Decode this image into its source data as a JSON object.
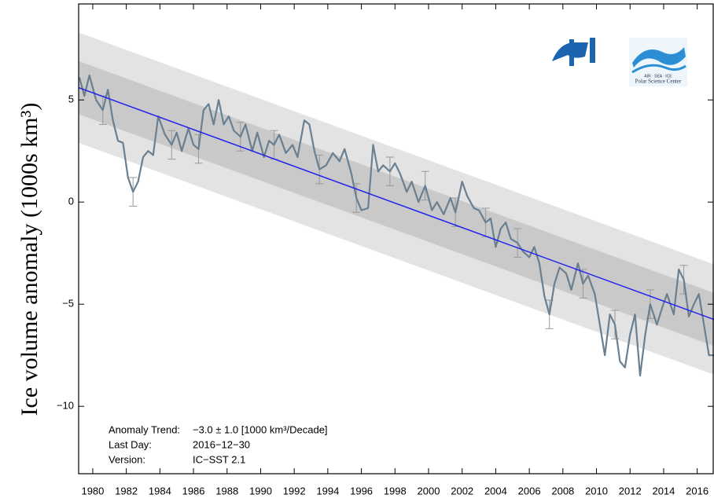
{
  "chart_data": {
    "type": "line",
    "y_label": "Ice volume anomaly  (1000s km³)",
    "xlim": [
      1979.16,
      2017.0
    ],
    "ylim": [
      -13.3,
      9.7
    ],
    "xticks": [
      1980,
      1982,
      1984,
      1986,
      1988,
      1990,
      1992,
      1994,
      1996,
      1998,
      2000,
      2002,
      2004,
      2006,
      2008,
      2010,
      2012,
      2014,
      2016
    ],
    "yticks": [
      {
        "value": -10,
        "label": "−10"
      },
      {
        "value": -5,
        "label": "−5"
      },
      0,
      5
    ],
    "series": [
      {
        "color": "#6a7f90",
        "x": [
          1979.2,
          1979.5,
          1979.8,
          1980.2,
          1980.6,
          1980.9,
          1981.2,
          1981.5,
          1981.8,
          1982.1,
          1982.4,
          1982.7,
          1983.0,
          1983.3,
          1983.6,
          1983.9,
          1984.3,
          1984.7,
          1985.0,
          1985.3,
          1985.7,
          1986.0,
          1986.3,
          1986.6,
          1986.9,
          1987.2,
          1987.5,
          1987.8,
          1988.1,
          1988.4,
          1988.8,
          1989.1,
          1989.5,
          1989.8,
          1990.2,
          1990.5,
          1990.8,
          1991.1,
          1991.5,
          1991.9,
          1992.2,
          1992.6,
          1992.9,
          1993.2,
          1993.5,
          1993.9,
          1994.3,
          1994.7,
          1995.0,
          1995.4,
          1995.7,
          1996.0,
          1996.4,
          1996.7,
          1997.0,
          1997.3,
          1997.7,
          1998.0,
          1998.3,
          1998.7,
          1999.0,
          1999.4,
          1999.8,
          2000.2,
          2000.5,
          2000.9,
          2001.3,
          2001.6,
          2002.0,
          2002.3,
          2002.7,
          2003.0,
          2003.4,
          2003.7,
          2004.0,
          2004.3,
          2004.6,
          2004.9,
          2005.3,
          2005.6,
          2006.0,
          2006.3,
          2006.6,
          2006.9,
          2007.2,
          2007.5,
          2007.8,
          2008.2,
          2008.5,
          2008.9,
          2009.2,
          2009.5,
          2009.9,
          2010.2,
          2010.5,
          2010.8,
          2011.1,
          2011.4,
          2011.7,
          2012.0,
          2012.3,
          2012.6,
          2012.9,
          2013.2,
          2013.6,
          2013.9,
          2014.2,
          2014.6,
          2014.9,
          2015.2,
          2015.5,
          2015.8,
          2016.1,
          2016.4,
          2016.7,
          2017.0
        ],
        "values": [
          6.1,
          5.2,
          6.2,
          5.0,
          4.5,
          5.5,
          4.0,
          3.0,
          2.9,
          1.2,
          0.5,
          1.0,
          2.2,
          2.5,
          2.3,
          4.2,
          3.3,
          2.8,
          3.4,
          2.5,
          3.6,
          2.8,
          2.6,
          4.5,
          4.8,
          3.8,
          5.0,
          3.8,
          4.2,
          3.5,
          3.2,
          3.8,
          2.5,
          3.4,
          2.2,
          3.0,
          2.8,
          3.3,
          2.4,
          2.8,
          2.2,
          4.0,
          3.8,
          2.5,
          1.6,
          1.8,
          2.4,
          2.0,
          2.6,
          1.4,
          0.2,
          -0.4,
          -0.3,
          2.8,
          1.5,
          1.8,
          1.5,
          1.9,
          1.4,
          0.5,
          1.0,
          0.0,
          0.8,
          -0.4,
          0.0,
          -0.6,
          0.2,
          -0.5,
          1.0,
          0.3,
          -0.3,
          -0.4,
          -1.0,
          -0.8,
          -2.2,
          -1.3,
          -1.0,
          -1.8,
          -2.0,
          -2.4,
          -2.7,
          -2.2,
          -3.0,
          -4.6,
          -5.5,
          -4.0,
          -3.2,
          -3.5,
          -4.3,
          -3.0,
          -4.0,
          -3.6,
          -4.5,
          -6.0,
          -7.5,
          -5.5,
          -6.0,
          -7.8,
          -8.1,
          -6.5,
          -5.5,
          -8.5,
          -6.5,
          -5.0,
          -6.0,
          -5.2,
          -4.5,
          -5.5,
          -3.3,
          -3.8,
          -5.6,
          -5.0,
          -4.5,
          -6.0,
          -7.5,
          -7.5
        ]
      }
    ],
    "error_bars": {
      "color": "#999999",
      "x": [
        1980.6,
        1982.4,
        1984.7,
        1986.3,
        1988.8,
        1990.8,
        1993.5,
        1995.7,
        1997.7,
        1999.8,
        2001.6,
        2003.4,
        2005.3,
        2007.2,
        2009.2,
        2011.1,
        2013.2,
        2015.2
      ],
      "values": [
        4.5,
        0.5,
        2.8,
        2.6,
        3.2,
        2.8,
        1.6,
        0.2,
        1.5,
        0.8,
        -0.5,
        -1.0,
        -2.0,
        -5.5,
        -4.0,
        -6.0,
        -5.0,
        -3.8
      ],
      "errors": [
        0.7,
        0.7,
        0.7,
        0.7,
        0.7,
        0.7,
        0.7,
        0.7,
        0.7,
        0.7,
        0.7,
        0.7,
        0.7,
        0.7,
        0.7,
        0.7,
        0.7,
        0.7
      ]
    },
    "trend": {
      "color": "#2222ee",
      "x": [
        1979.16,
        2017.0
      ],
      "values": [
        5.6,
        -5.75
      ]
    },
    "bands": [
      {
        "half_width": 2.7,
        "color": "#e3e3e3"
      },
      {
        "half_width": 1.3,
        "color": "#c9c9c9"
      }
    ],
    "annotations": [
      {
        "label": "Anomaly Trend:",
        "text": "−3.0 ± 1.0 [1000 km³/Decade]"
      },
      {
        "label": "Last Day:",
        "text": "2016−12−30"
      },
      {
        "label": "Version:",
        "text": "IC−SST 2.1"
      }
    ],
    "logo_text": [
      "AIR  ·  SEA  ·  ICE",
      "Polar Science Center"
    ]
  }
}
